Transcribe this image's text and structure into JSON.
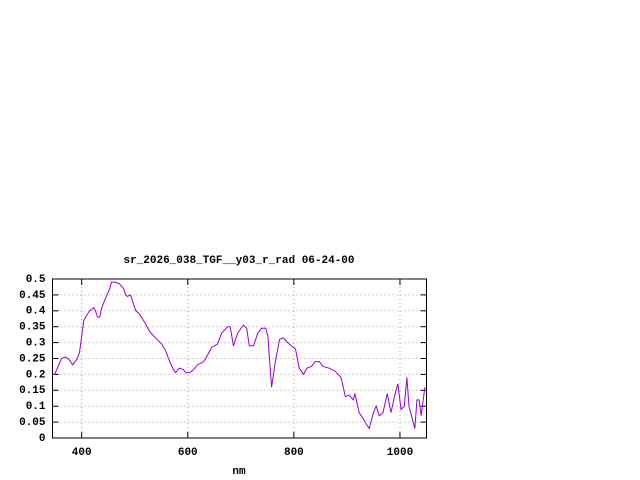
{
  "chart_data": {
    "type": "line",
    "title": "sr_2026_038_TGF__y03_r_rad 06-24-00",
    "x_label": "nm",
    "x": [
      349,
      362,
      370,
      377,
      383,
      392,
      396,
      404,
      411,
      415,
      423,
      426,
      430,
      434,
      438,
      445,
      453,
      456,
      464,
      471,
      479,
      483,
      486,
      492,
      498,
      502,
      509,
      520,
      528,
      539,
      551,
      558,
      566,
      573,
      577,
      584,
      592,
      596,
      603,
      611,
      618,
      630,
      637,
      645,
      656,
      664,
      675,
      680,
      686,
      694,
      705,
      711,
      716,
      724,
      732,
      739,
      747,
      751,
      754,
      758,
      765,
      773,
      780,
      788,
      795,
      803,
      810,
      818,
      825,
      833,
      840,
      848,
      855,
      866,
      878,
      889,
      897,
      904,
      912,
      915,
      923,
      931,
      934,
      942,
      950,
      955,
      961,
      968,
      976,
      983,
      991,
      996,
      1002,
      1008,
      1013,
      1017,
      1025,
      1028,
      1032,
      1036,
      1040,
      1047
    ],
    "series": [
      {
        "name": "sr_2026_038_TGF__y03_r_rad",
        "color": "#9400d3",
        "values": [
          0.2,
          0.25,
          0.255,
          0.245,
          0.23,
          0.25,
          0.27,
          0.37,
          0.39,
          0.4,
          0.41,
          0.4,
          0.38,
          0.38,
          0.41,
          0.44,
          0.47,
          0.49,
          0.49,
          0.485,
          0.47,
          0.45,
          0.445,
          0.45,
          0.42,
          0.4,
          0.39,
          0.36,
          0.335,
          0.315,
          0.295,
          0.275,
          0.24,
          0.215,
          0.205,
          0.22,
          0.215,
          0.205,
          0.205,
          0.215,
          0.23,
          0.24,
          0.26,
          0.285,
          0.295,
          0.33,
          0.35,
          0.35,
          0.29,
          0.33,
          0.355,
          0.345,
          0.29,
          0.29,
          0.33,
          0.345,
          0.345,
          0.32,
          0.25,
          0.16,
          0.24,
          0.31,
          0.315,
          0.3,
          0.29,
          0.28,
          0.22,
          0.2,
          0.22,
          0.225,
          0.24,
          0.24,
          0.225,
          0.22,
          0.21,
          0.19,
          0.13,
          0.135,
          0.12,
          0.14,
          0.08,
          0.06,
          0.05,
          0.03,
          0.08,
          0.1,
          0.07,
          0.08,
          0.14,
          0.08,
          0.14,
          0.17,
          0.09,
          0.1,
          0.19,
          0.1,
          0.05,
          0.03,
          0.12,
          0.12,
          0.07,
          0.16
        ]
      }
    ],
    "xlim": [
      345,
      1050
    ],
    "ylim": [
      0,
      0.5
    ],
    "xticks": [
      400,
      600,
      800,
      1000
    ],
    "yticks": [
      0,
      0.05,
      0.1,
      0.15,
      0.2,
      0.25,
      0.3,
      0.35,
      0.4,
      0.45,
      0.5
    ],
    "grid": true
  }
}
